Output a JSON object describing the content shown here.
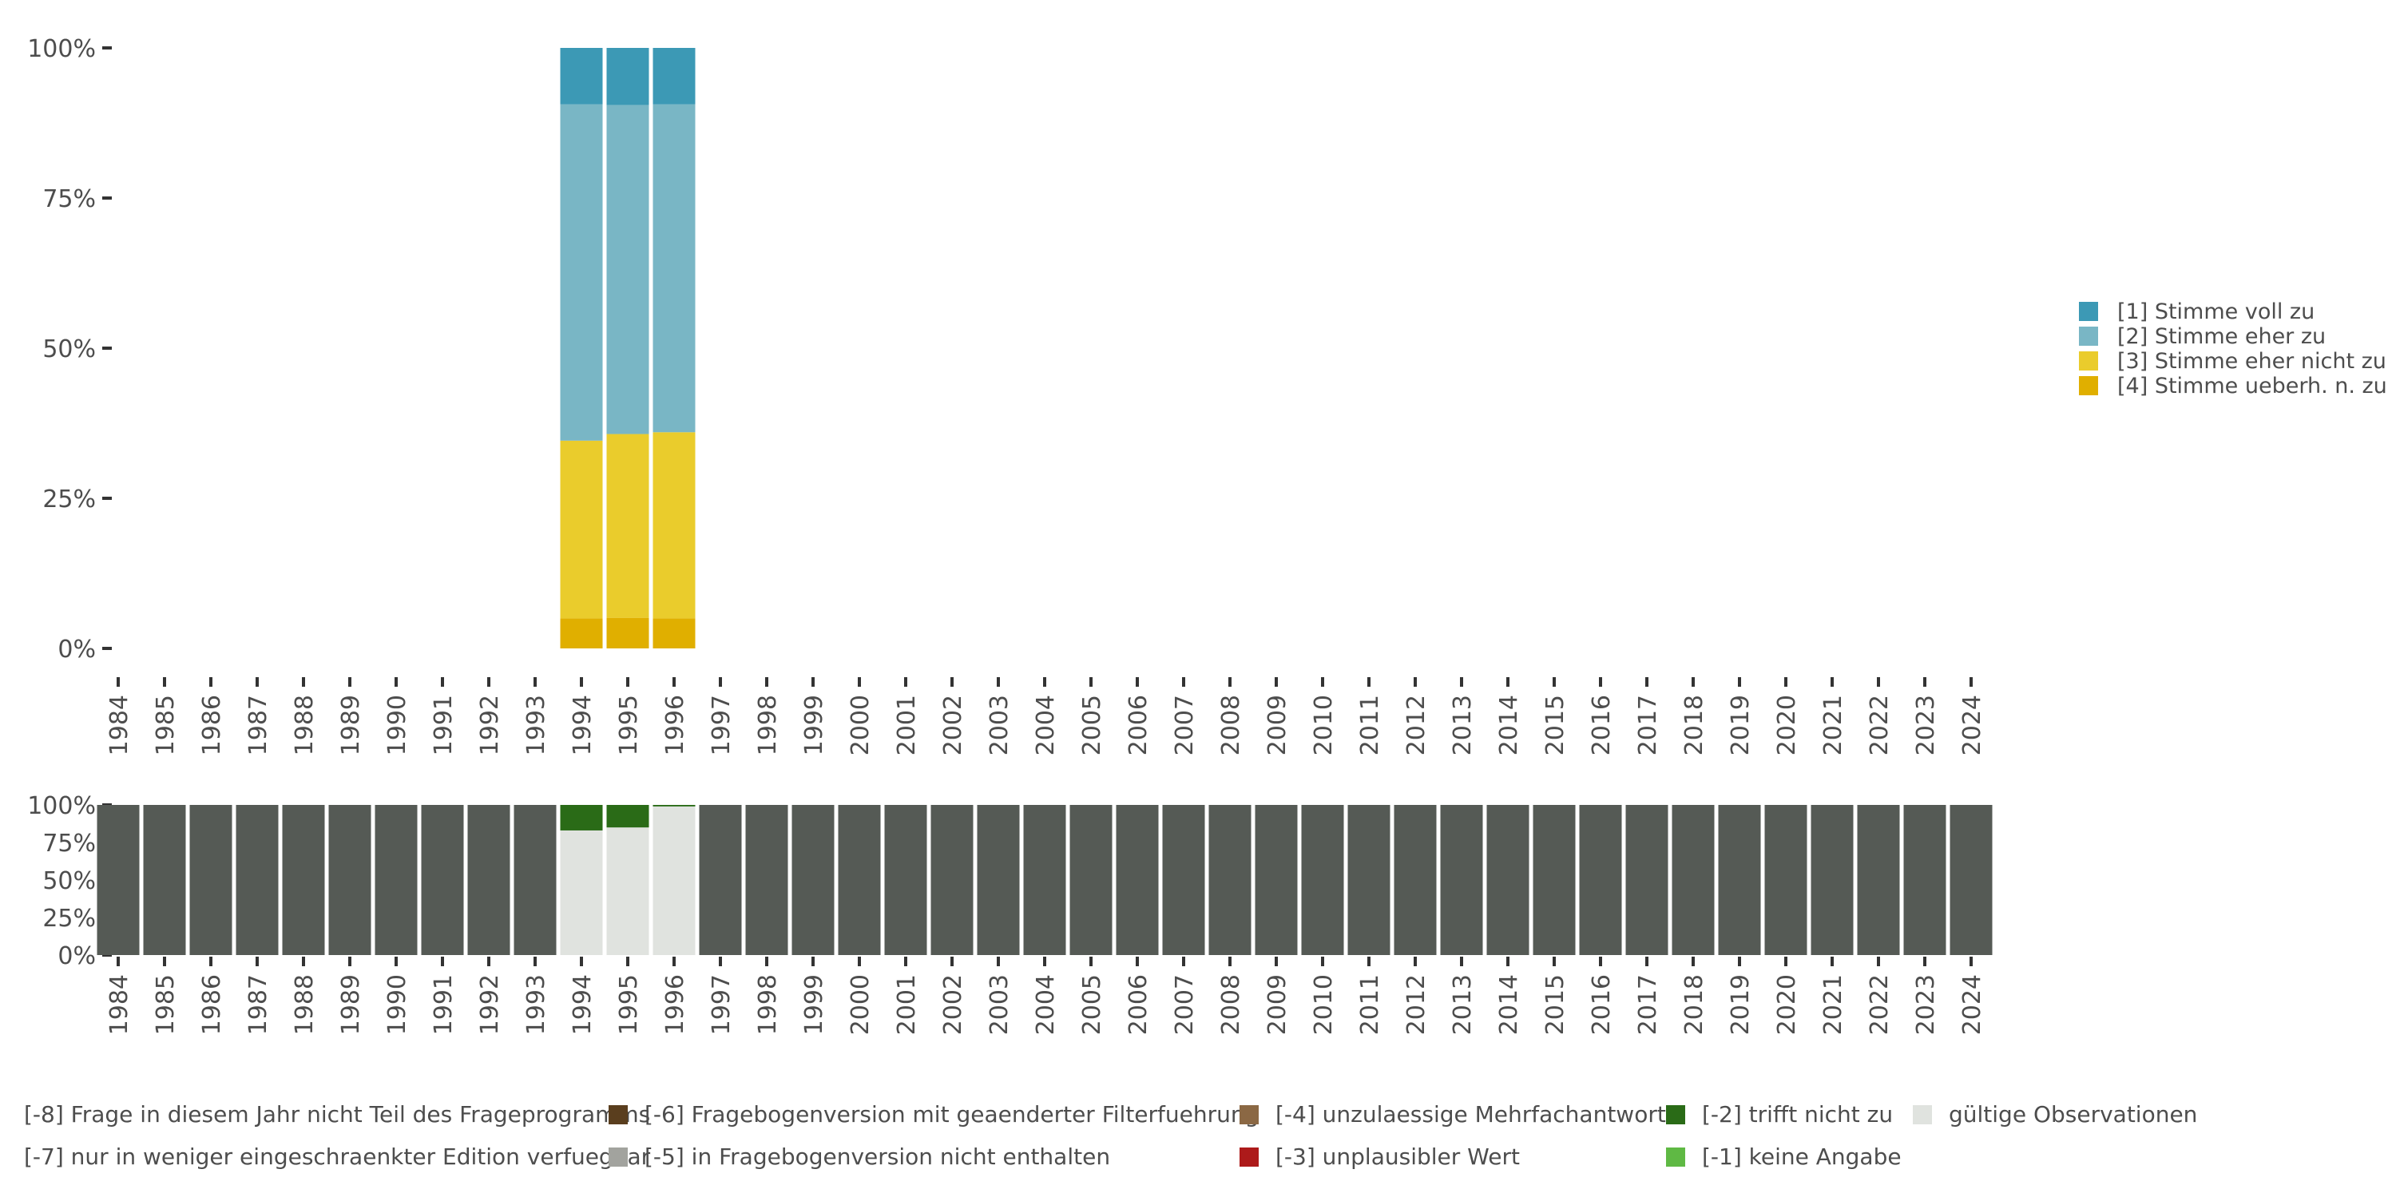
{
  "chart_data": [
    {
      "type": "bar",
      "stacked": true,
      "percent": true,
      "categories": [
        "1984",
        "1985",
        "1986",
        "1987",
        "1988",
        "1989",
        "1990",
        "1991",
        "1992",
        "1993",
        "1994",
        "1995",
        "1996",
        "1997",
        "1998",
        "1999",
        "2000",
        "2001",
        "2002",
        "2003",
        "2004",
        "2005",
        "2006",
        "2007",
        "2008",
        "2009",
        "2010",
        "2011",
        "2012",
        "2013",
        "2014",
        "2015",
        "2016",
        "2017",
        "2018",
        "2019",
        "2020",
        "2021",
        "2022",
        "2023",
        "2024"
      ],
      "ylim": [
        0,
        1
      ],
      "y_ticks": [
        "0%",
        "25%",
        "50%",
        "75%",
        "100%"
      ],
      "grid": false,
      "legend_position": "right",
      "series": [
        {
          "name": "[4] Stimme ueberh. n. zu",
          "color": "#E0AF00",
          "values": [
            null,
            null,
            null,
            null,
            null,
            null,
            null,
            null,
            null,
            null,
            0.05,
            0.051,
            0.05,
            null,
            null,
            null,
            null,
            null,
            null,
            null,
            null,
            null,
            null,
            null,
            null,
            null,
            null,
            null,
            null,
            null,
            null,
            null,
            null,
            null,
            null,
            null,
            null,
            null,
            null,
            null,
            null
          ]
        },
        {
          "name": "[3] Stimme eher nicht zu",
          "color": "#EACC2C",
          "values": [
            null,
            null,
            null,
            null,
            null,
            null,
            null,
            null,
            null,
            null,
            0.296,
            0.306,
            0.31,
            null,
            null,
            null,
            null,
            null,
            null,
            null,
            null,
            null,
            null,
            null,
            null,
            null,
            null,
            null,
            null,
            null,
            null,
            null,
            null,
            null,
            null,
            null,
            null,
            null,
            null,
            null,
            null
          ]
        },
        {
          "name": "[2] Stimme eher zu",
          "color": "#79B6C5",
          "values": [
            null,
            null,
            null,
            null,
            null,
            null,
            null,
            null,
            null,
            null,
            0.56,
            0.548,
            0.546,
            null,
            null,
            null,
            null,
            null,
            null,
            null,
            null,
            null,
            null,
            null,
            null,
            null,
            null,
            null,
            null,
            null,
            null,
            null,
            null,
            null,
            null,
            null,
            null,
            null,
            null,
            null,
            null
          ]
        },
        {
          "name": "[1] Stimme voll zu",
          "color": "#3C99B5",
          "values": [
            null,
            null,
            null,
            null,
            null,
            null,
            null,
            null,
            null,
            null,
            0.094,
            0.095,
            0.094,
            null,
            null,
            null,
            null,
            null,
            null,
            null,
            null,
            null,
            null,
            null,
            null,
            null,
            null,
            null,
            null,
            null,
            null,
            null,
            null,
            null,
            null,
            null,
            null,
            null,
            null,
            null,
            null
          ]
        }
      ],
      "legend_order": [
        "[1] Stimme voll zu",
        "[2] Stimme eher zu",
        "[3] Stimme eher nicht zu",
        "[4] Stimme ueberh. n. zu"
      ]
    },
    {
      "type": "bar",
      "stacked": true,
      "percent": true,
      "categories": [
        "1984",
        "1985",
        "1986",
        "1987",
        "1988",
        "1989",
        "1990",
        "1991",
        "1992",
        "1993",
        "1994",
        "1995",
        "1996",
        "1997",
        "1998",
        "1999",
        "2000",
        "2001",
        "2002",
        "2003",
        "2004",
        "2005",
        "2006",
        "2007",
        "2008",
        "2009",
        "2010",
        "2011",
        "2012",
        "2013",
        "2014",
        "2015",
        "2016",
        "2017",
        "2018",
        "2019",
        "2020",
        "2021",
        "2022",
        "2023",
        "2024"
      ],
      "ylim": [
        0,
        1
      ],
      "y_ticks": [
        "0%",
        "25%",
        "50%",
        "75%",
        "100%"
      ],
      "grid": false,
      "legend_position": "bottom",
      "series": [
        {
          "name": "gültige Observationen",
          "color": "#E0E3DF",
          "values": [
            0,
            0,
            0,
            0,
            0,
            0,
            0,
            0,
            0,
            0,
            0.83,
            0.85,
            0.99,
            0,
            0,
            0,
            0,
            0,
            0,
            0,
            0,
            0,
            0,
            0,
            0,
            0,
            0,
            0,
            0,
            0,
            0,
            0,
            0,
            0,
            0,
            0,
            0,
            0,
            0,
            0,
            0
          ]
        },
        {
          "name": "[-2] trifft nicht zu",
          "color": "#2A6B17",
          "values": [
            0,
            0,
            0,
            0,
            0,
            0,
            0,
            0,
            0,
            0,
            0.17,
            0.15,
            0.01,
            0,
            0,
            0,
            0,
            0,
            0,
            0,
            0,
            0,
            0,
            0,
            0,
            0,
            0,
            0,
            0,
            0,
            0,
            0,
            0,
            0,
            0,
            0,
            0,
            0,
            0,
            0,
            0
          ]
        },
        {
          "name": "[-8] Frage in diesem Jahr nicht Teil des Frageprogramms",
          "color": "#555A55",
          "values": [
            1,
            1,
            1,
            1,
            1,
            1,
            1,
            1,
            1,
            1,
            0,
            0,
            0,
            1,
            1,
            1,
            1,
            1,
            1,
            1,
            1,
            1,
            1,
            1,
            1,
            1,
            1,
            1,
            1,
            1,
            1,
            1,
            1,
            1,
            1,
            1,
            1,
            1,
            1,
            1,
            1
          ]
        }
      ],
      "legend": [
        {
          "label": "[-8] Frage in diesem Jahr nicht Teil des Frageprogramms",
          "color": "#555A55"
        },
        {
          "label": "[-6] Fragebogenversion mit geaenderter Filterfuehrung",
          "color": "#5A3E1E"
        },
        {
          "label": "[-4] unzulaessige Mehrfachantwort",
          "color": "#8B6844"
        },
        {
          "label": "[-2] trifft nicht zu",
          "color": "#2A6B17"
        },
        {
          "label": "gültige Observationen",
          "color": "#E0E3DF"
        },
        {
          "label": "[-7] nur in weniger eingeschraenkter Edition verfuegbar",
          "color": "#3F3F3F"
        },
        {
          "label": "[-5] in Fragebogenversion nicht enthalten",
          "color": "#A2A39E"
        },
        {
          "label": "[-3] unplausibler Wert",
          "color": "#AD1A1A"
        },
        {
          "label": "[-1] keine Angabe",
          "color": "#5FB944"
        }
      ]
    }
  ]
}
